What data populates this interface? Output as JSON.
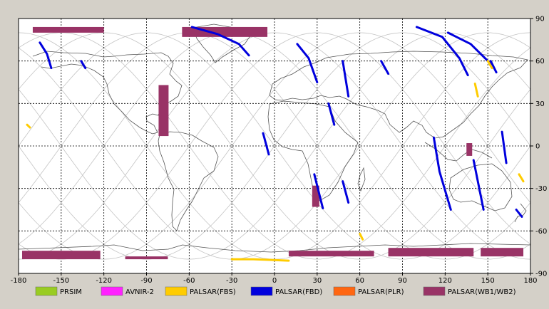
{
  "chart_data": {
    "type": "map",
    "x_ticks": [
      "-180",
      "-150",
      "-120",
      "-90",
      "-60",
      "-30",
      "0",
      "30",
      "60",
      "90",
      "120",
      "150",
      "180"
    ],
    "y_ticks": [
      "90",
      "60",
      "30",
      "0",
      "-30",
      "-60",
      "-90"
    ],
    "xlim": [
      -180,
      180
    ],
    "ylim": [
      -90,
      90
    ],
    "grid": true,
    "legend": [
      {
        "label": "PRSIM",
        "color": "#99cc22"
      },
      {
        "label": "AVNIR-2",
        "color": "#ff22ff"
      },
      {
        "label": "PALSAR(FBS)",
        "color": "#ffcc00"
      },
      {
        "label": "PALSAR(FBD)",
        "color": "#0000dd"
      },
      {
        "label": "PALSAR(PLR)",
        "color": "#ff6611"
      },
      {
        "label": "PALSAR(WB1/WB2)",
        "color": "#993366"
      }
    ],
    "series": [
      {
        "type": "PALSAR(WB1/WB2)",
        "strips": [
          {
            "lon": -145,
            "width": 50,
            "lat0": 80,
            "lat1": 84
          },
          {
            "lon": -35,
            "width": 60,
            "lat0": 77,
            "lat1": 84
          },
          {
            "lon": -78,
            "width": 7,
            "lat0": 7,
            "lat1": 43
          },
          {
            "lon": 29,
            "width": 5,
            "lat0": -43,
            "lat1": -28
          },
          {
            "lon": 137,
            "width": 4,
            "lat0": -7,
            "lat1": 2
          },
          {
            "lon": -150,
            "width": 55,
            "lat0": -80,
            "lat1": -74
          },
          {
            "lon": -90,
            "width": 30,
            "lat0": -80,
            "lat1": -78
          },
          {
            "lon": 40,
            "width": 60,
            "lat0": -78,
            "lat1": -74
          },
          {
            "lon": 110,
            "width": 60,
            "lat0": -78,
            "lat1": -72
          },
          {
            "lon": 160,
            "width": 30,
            "lat0": -78,
            "lat1": -72
          }
        ]
      },
      {
        "type": "PALSAR(FBD)",
        "tracks": [
          [
            [
              -165,
              73
            ],
            [
              -160,
              65
            ],
            [
              -157,
              55
            ]
          ],
          [
            [
              -136,
              60
            ],
            [
              -133,
              55
            ]
          ],
          [
            [
              -58,
              84
            ],
            [
              -40,
              79
            ],
            [
              -25,
              72
            ],
            [
              -18,
              64
            ]
          ],
          [
            [
              16,
              72
            ],
            [
              24,
              62
            ],
            [
              30,
              45
            ]
          ],
          [
            [
              38,
              30
            ],
            [
              42,
              15
            ]
          ],
          [
            [
              -8,
              9
            ],
            [
              -4,
              -6
            ]
          ],
          [
            [
              48,
              60
            ],
            [
              52,
              35
            ]
          ],
          [
            [
              28,
              -20
            ],
            [
              34,
              -44
            ]
          ],
          [
            [
              48,
              -25
            ],
            [
              52,
              -40
            ]
          ],
          [
            [
              75,
              60
            ],
            [
              80,
              51
            ]
          ],
          [
            [
              100,
              84
            ],
            [
              118,
              77
            ],
            [
              130,
              62
            ],
            [
              136,
              50
            ]
          ],
          [
            [
              122,
              80
            ],
            [
              138,
              72
            ],
            [
              152,
              58
            ]
          ],
          [
            [
              152,
              60
            ],
            [
              156,
              52
            ]
          ],
          [
            [
              112,
              6
            ],
            [
              116,
              -18
            ],
            [
              124,
              -45
            ]
          ],
          [
            [
              140,
              -10
            ],
            [
              147,
              -45
            ]
          ],
          [
            [
              160,
              10
            ],
            [
              163,
              -12
            ]
          ],
          [
            [
              170,
              -45
            ],
            [
              174,
              -50
            ]
          ]
        ]
      },
      {
        "type": "PALSAR(FBS)",
        "tracks": [
          [
            [
              -174,
              15
            ],
            [
              -172,
              13
            ]
          ],
          [
            [
              141,
              44
            ],
            [
              143,
              35
            ]
          ],
          [
            [
              150,
              60
            ],
            [
              153,
              55
            ]
          ],
          [
            [
              172,
              -20
            ],
            [
              175,
              -25
            ]
          ],
          [
            [
              60,
              -62
            ],
            [
              62,
              -66
            ]
          ],
          [
            [
              -30,
              -80
            ],
            [
              -15,
              -80
            ],
            [
              10,
              -81
            ]
          ]
        ]
      }
    ]
  }
}
